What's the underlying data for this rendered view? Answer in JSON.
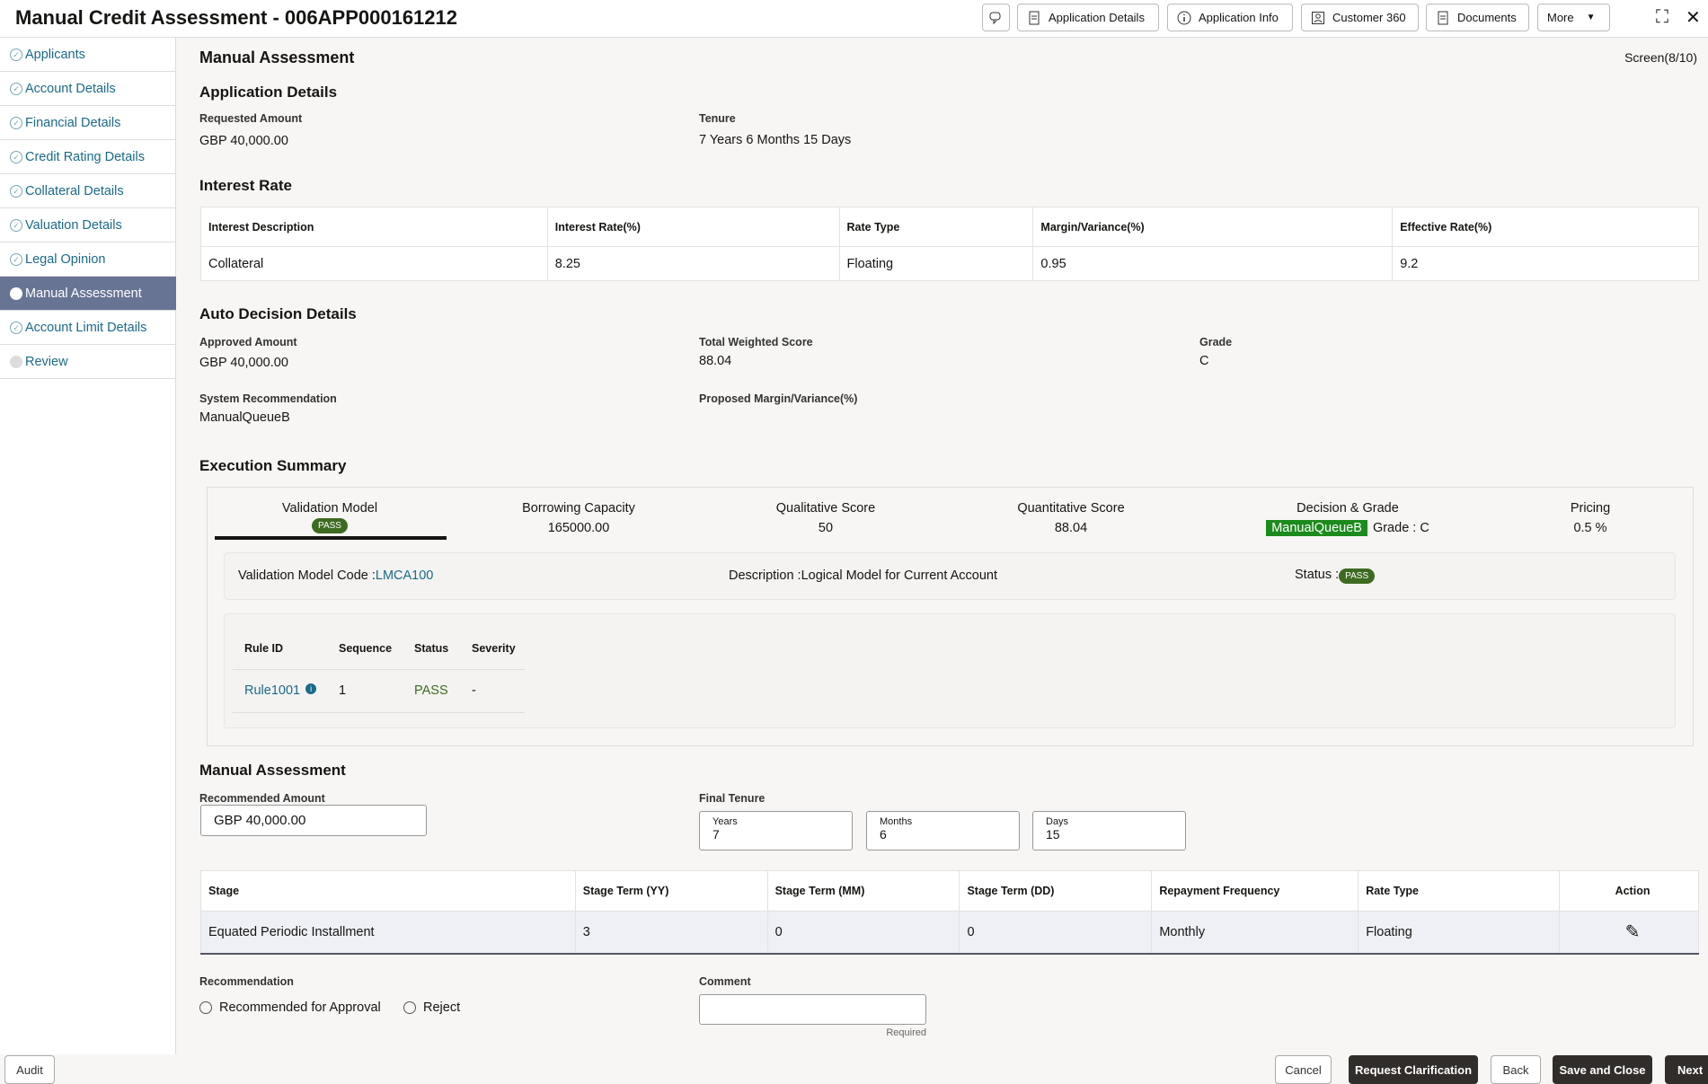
{
  "header": {
    "title": "Manual Credit Assessment - 006APP000161212",
    "buttons": [
      "Application Details",
      "Application Info",
      "Customer 360",
      "Documents",
      "More"
    ]
  },
  "sidebar": {
    "items": [
      {
        "label": "Applicants",
        "state": "done"
      },
      {
        "label": "Account Details",
        "state": "done"
      },
      {
        "label": "Financial Details",
        "state": "done"
      },
      {
        "label": "Credit Rating Details",
        "state": "done"
      },
      {
        "label": "Collateral Details",
        "state": "done"
      },
      {
        "label": "Valuation Details",
        "state": "done"
      },
      {
        "label": "Legal Opinion",
        "state": "done"
      },
      {
        "label": "Manual Assessment",
        "state": "active"
      },
      {
        "label": "Account Limit Details",
        "state": "done"
      },
      {
        "label": "Review",
        "state": "pending"
      }
    ]
  },
  "page": {
    "title": "Manual Assessment",
    "screen": "Screen(8/10)"
  },
  "application_details": {
    "heading": "Application Details",
    "requested_amount_label": "Requested Amount",
    "requested_amount": "GBP 40,000.00",
    "tenure_label": "Tenure",
    "tenure": "7 Years 6 Months 15 Days"
  },
  "interest_rate": {
    "heading": "Interest Rate",
    "columns": [
      "Interest Description",
      "Interest Rate(%)",
      "Rate Type",
      "Margin/Variance(%)",
      "Effective Rate(%)"
    ],
    "rows": [
      [
        "Collateral",
        "8.25",
        "Floating",
        "0.95",
        "9.2"
      ]
    ]
  },
  "auto_decision": {
    "heading": "Auto Decision Details",
    "approved_amount_label": "Approved Amount",
    "approved_amount": "GBP 40,000.00",
    "total_weighted_score_label": "Total Weighted Score",
    "total_weighted_score": "88.04",
    "grade_label": "Grade",
    "grade": "C",
    "system_recommendation_label": "System Recommendation",
    "system_recommendation": "ManualQueueB",
    "proposed_margin_label": "Proposed Margin/Variance(%)"
  },
  "execution_summary": {
    "heading": "Execution Summary",
    "tabs": [
      {
        "label": "Validation Model",
        "value": "PASS"
      },
      {
        "label": "Borrowing Capacity",
        "value": "165000.00"
      },
      {
        "label": "Qualitative Score",
        "value": "50"
      },
      {
        "label": "Quantitative Score",
        "value": "88.04"
      },
      {
        "label": "Decision & Grade",
        "value": "ManualQueueB",
        "extra": "Grade : C"
      },
      {
        "label": "Pricing",
        "value": "0.5 %"
      }
    ],
    "model_code_label": "Validation Model Code :",
    "model_code": "LMCA100",
    "description": "Description :Logical Model for Current Account",
    "status_label": "Status :",
    "status": "PASS",
    "rules": {
      "columns": [
        "Rule ID",
        "Sequence",
        "Status",
        "Severity"
      ],
      "rows": [
        [
          "Rule1001",
          "1",
          "PASS",
          "-"
        ]
      ]
    }
  },
  "manual_assessment": {
    "heading": "Manual Assessment",
    "recommended_amount_label": "Recommended Amount",
    "recommended_amount": "GBP 40,000.00",
    "final_tenure_label": "Final Tenure",
    "years_label": "Years",
    "years": "7",
    "months_label": "Months",
    "months": "6",
    "days_label": "Days",
    "days": "15",
    "stages": {
      "columns": [
        "Stage",
        "Stage Term (YY)",
        "Stage Term (MM)",
        "Stage Term (DD)",
        "Repayment Frequency",
        "Rate Type",
        "Action"
      ],
      "rows": [
        [
          "Equated Periodic Installment",
          "3",
          "0",
          "0",
          "Monthly",
          "Floating"
        ]
      ]
    },
    "recommendation_label": "Recommendation",
    "options": [
      "Recommended for Approval",
      "Reject"
    ],
    "comment_label": "Comment",
    "comment": "",
    "required": "Required"
  },
  "footer": {
    "audit": "Audit",
    "cancel": "Cancel",
    "request_clarification": "Request Clarification",
    "back": "Back",
    "save_and_close": "Save and Close",
    "next": "Next"
  },
  "colors": {
    "accent": "#687494",
    "pass": "#3e6b22",
    "decision": "#1d8a1d",
    "link": "#1a6a8a",
    "dark_button": "#312d2a"
  }
}
